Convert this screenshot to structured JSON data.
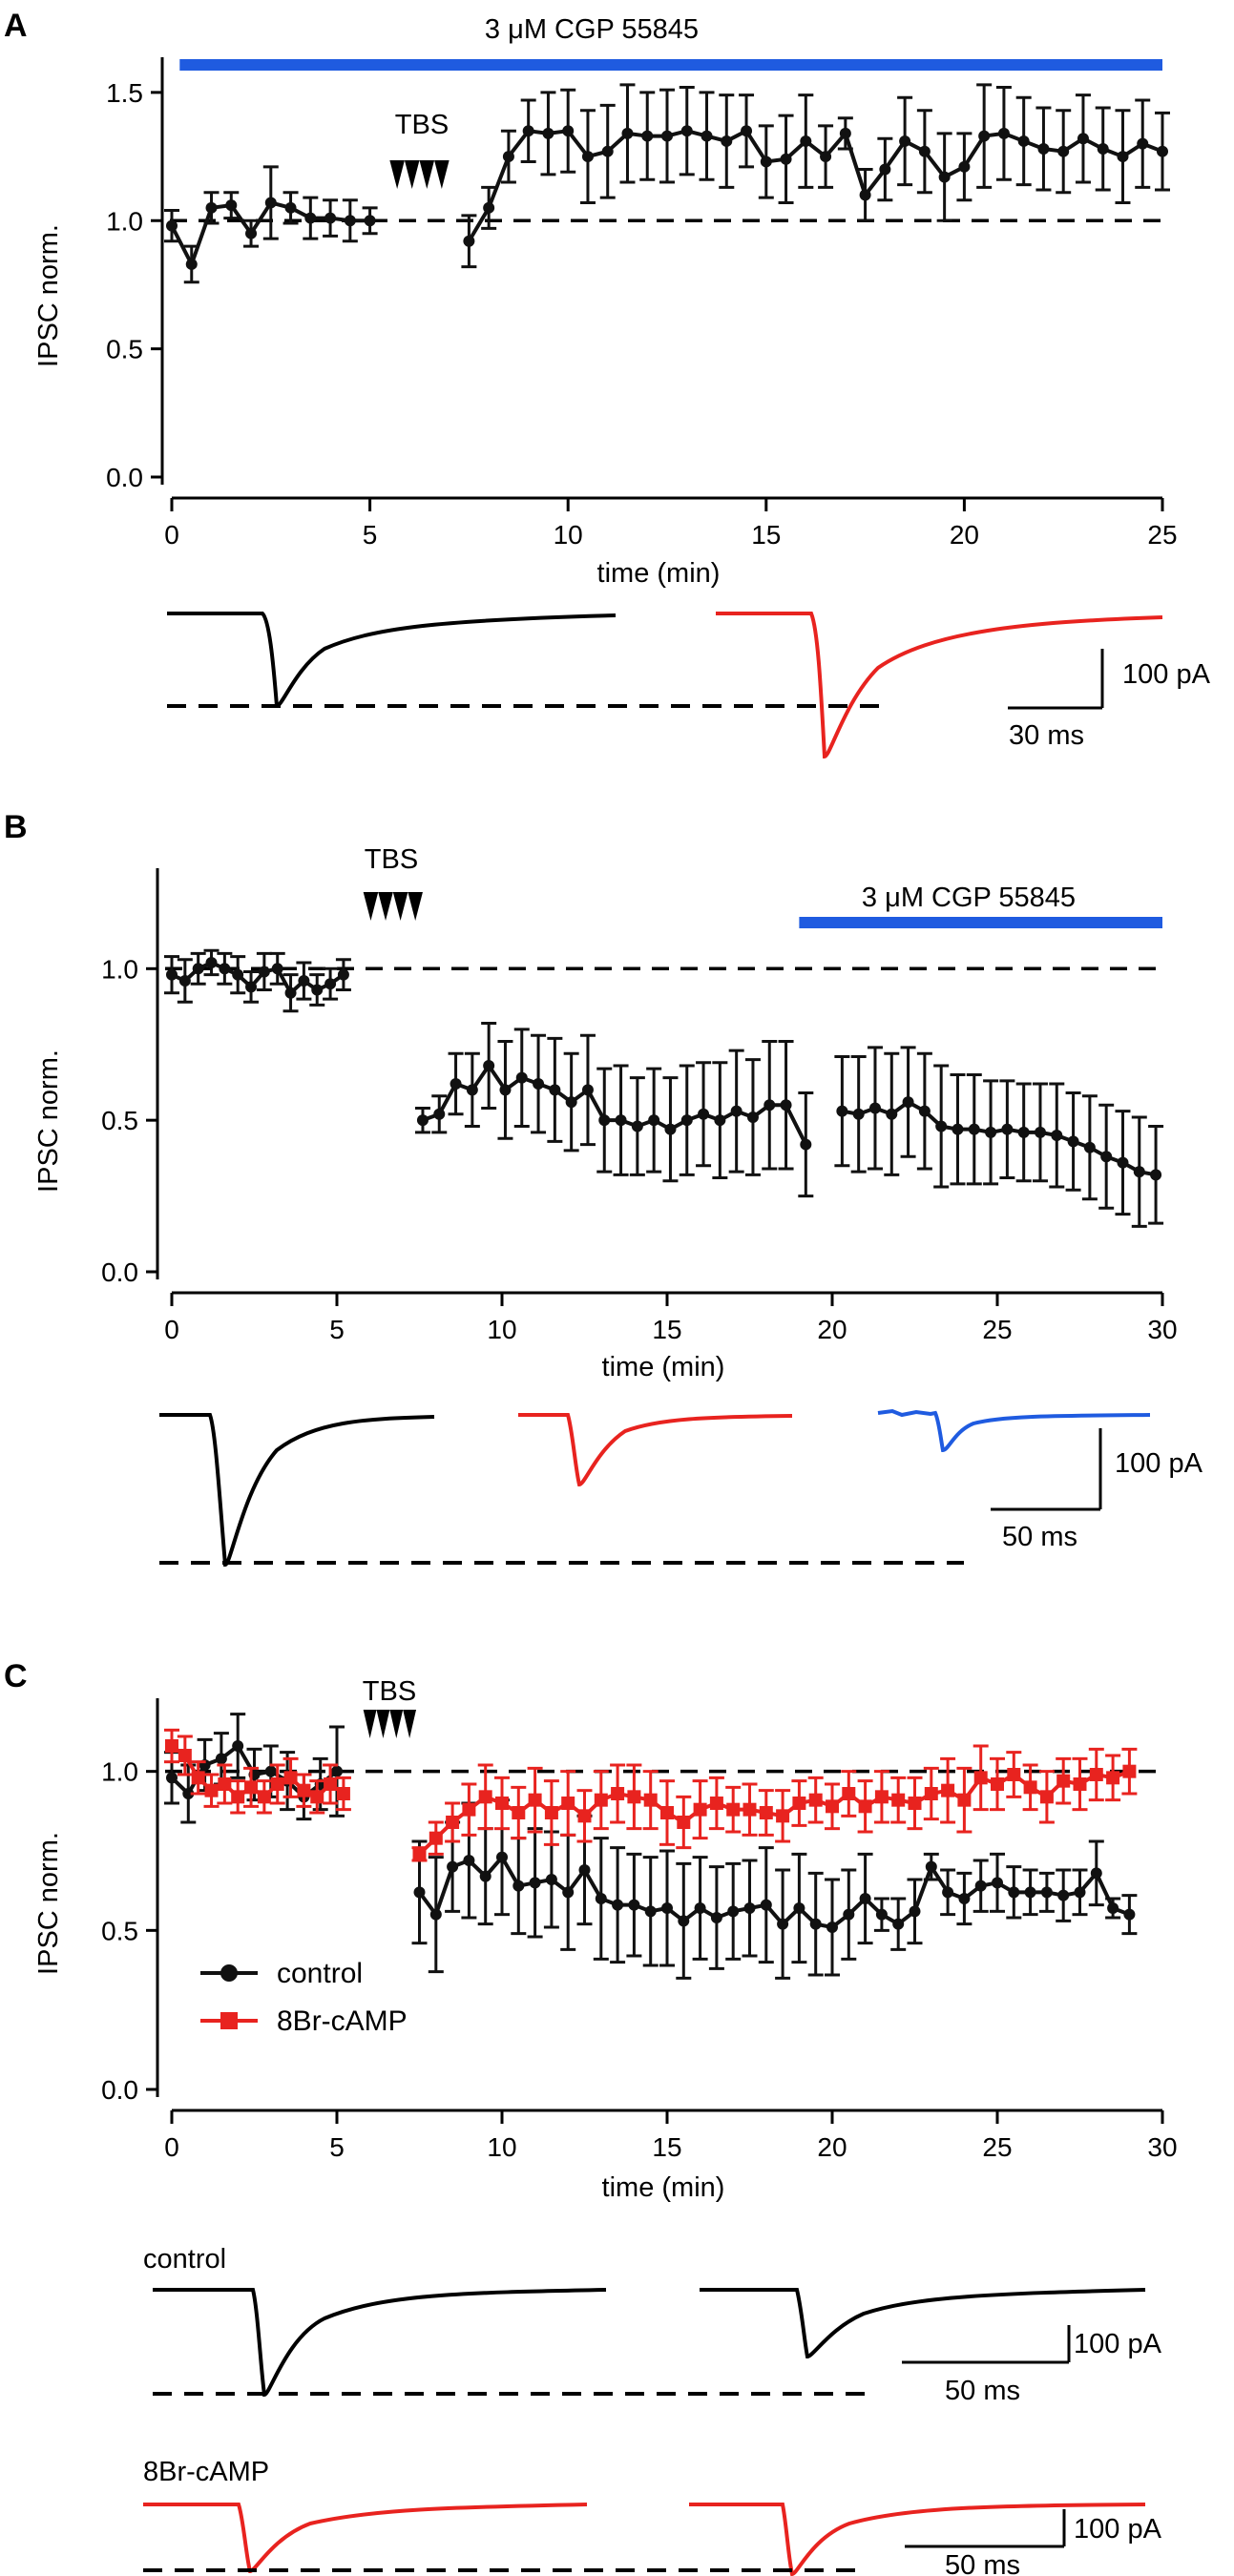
{
  "colors": {
    "axis": "#000000",
    "control": "#111111",
    "treatment_red": "#e8231f",
    "drug_bar_blue": "#1f5be0"
  },
  "chart_data": [
    {
      "panel": "A",
      "type": "line",
      "xlabel": "time (min)",
      "ylabel": "IPSC norm.",
      "xlim": [
        0,
        25
      ],
      "ylim": [
        0,
        1.6
      ],
      "xticks": [
        "0",
        "5",
        "10",
        "15",
        "20",
        "25"
      ],
      "yticks": [
        "0.0",
        "0.5",
        "1.0",
        "1.5"
      ],
      "drug_label": "3 μM CGP 55845",
      "drug_range": [
        0.2,
        25
      ],
      "stim_label": "TBS",
      "stim_range": [
        5.5,
        7
      ],
      "baseline": 1.0,
      "series": [
        {
          "name": "IPSC",
          "color": "#111111",
          "marker": "circle",
          "segments": [
            {
              "x": [
                0,
                0.5,
                1,
                1.5,
                2,
                2.5,
                3,
                3.5,
                4,
                4.5,
                5
              ],
              "y": [
                0.98,
                0.83,
                1.05,
                1.06,
                0.95,
                1.07,
                1.05,
                1.01,
                1.01,
                1.0,
                1.0
              ],
              "err": [
                0.06,
                0.07,
                0.06,
                0.05,
                0.05,
                0.14,
                0.06,
                0.08,
                0.07,
                0.08,
                0.05
              ]
            },
            {
              "x": [
                7.5,
                8,
                8.5,
                9,
                9.5,
                10,
                10.5,
                11,
                11.5,
                12,
                12.5,
                13,
                13.5,
                14,
                14.5,
                15,
                15.5,
                16,
                16.5,
                17,
                17.5,
                18,
                18.5,
                19,
                19.5,
                20,
                20.5,
                21,
                21.5,
                22,
                22.5,
                23,
                23.5,
                24,
                24.5,
                25
              ],
              "y": [
                0.92,
                1.05,
                1.25,
                1.35,
                1.34,
                1.35,
                1.25,
                1.27,
                1.34,
                1.33,
                1.33,
                1.35,
                1.33,
                1.31,
                1.35,
                1.23,
                1.24,
                1.31,
                1.25,
                1.34,
                1.1,
                1.2,
                1.31,
                1.27,
                1.17,
                1.21,
                1.33,
                1.34,
                1.31,
                1.28,
                1.27,
                1.32,
                1.28,
                1.25,
                1.3,
                1.27
              ],
              "err": [
                0.1,
                0.08,
                0.1,
                0.12,
                0.16,
                0.16,
                0.18,
                0.18,
                0.19,
                0.17,
                0.18,
                0.17,
                0.17,
                0.18,
                0.14,
                0.14,
                0.17,
                0.18,
                0.12,
                0.06,
                0.1,
                0.12,
                0.17,
                0.16,
                0.17,
                0.13,
                0.2,
                0.18,
                0.17,
                0.16,
                0.16,
                0.17,
                0.16,
                0.18,
                0.17,
                0.15
              ]
            }
          ]
        }
      ],
      "scalebar": {
        "y_label": "100 pA",
        "x_label": "30 ms"
      }
    },
    {
      "panel": "B",
      "type": "line",
      "xlabel": "time (min)",
      "ylabel": "IPSC norm.",
      "xlim": [
        0,
        30
      ],
      "ylim": [
        0,
        1.3
      ],
      "xticks": [
        "0",
        "5",
        "10",
        "15",
        "20",
        "25",
        "30"
      ],
      "yticks": [
        "0.0",
        "0.5",
        "1.0"
      ],
      "drug_label": "3 μM CGP 55845",
      "drug_range": [
        19,
        30
      ],
      "stim_label": "TBS",
      "stim_range": [
        5.8,
        7.6
      ],
      "baseline": 1.0,
      "series": [
        {
          "name": "IPSC",
          "color": "#111111",
          "marker": "circle",
          "segments": [
            {
              "x": [
                0,
                0.4,
                0.8,
                1.2,
                1.6,
                2,
                2.4,
                2.8,
                3.2,
                3.6,
                4,
                4.4,
                4.8,
                5.2
              ],
              "y": [
                0.98,
                0.96,
                1.0,
                1.02,
                1.0,
                0.98,
                0.94,
                0.99,
                1.0,
                0.92,
                0.96,
                0.93,
                0.95,
                0.98
              ],
              "err": [
                0.06,
                0.07,
                0.05,
                0.04,
                0.05,
                0.06,
                0.05,
                0.06,
                0.05,
                0.06,
                0.06,
                0.05,
                0.05,
                0.05
              ]
            },
            {
              "x": [
                7.6,
                8.1,
                8.6,
                9.1,
                9.6,
                10.1,
                10.6,
                11.1,
                11.6,
                12.1,
                12.6,
                13.1,
                13.6,
                14.1,
                14.6,
                15.1,
                15.6,
                16.1,
                16.6,
                17.1,
                17.6,
                18.1,
                18.6,
                19.2
              ],
              "y": [
                0.5,
                0.52,
                0.62,
                0.6,
                0.68,
                0.6,
                0.64,
                0.62,
                0.6,
                0.56,
                0.6,
                0.5,
                0.5,
                0.48,
                0.5,
                0.47,
                0.5,
                0.52,
                0.5,
                0.53,
                0.51,
                0.55,
                0.55,
                0.42
              ],
              "err": [
                0.04,
                0.06,
                0.1,
                0.12,
                0.14,
                0.16,
                0.16,
                0.16,
                0.17,
                0.16,
                0.18,
                0.17,
                0.18,
                0.16,
                0.17,
                0.17,
                0.18,
                0.17,
                0.19,
                0.2,
                0.19,
                0.21,
                0.21,
                0.17
              ]
            },
            {
              "x": [
                20.3,
                20.8,
                21.3,
                21.8,
                22.3,
                22.8,
                23.3,
                23.8,
                24.3,
                24.8,
                25.3,
                25.8,
                26.3,
                26.8,
                27.3,
                27.8,
                28.3,
                28.8,
                29.3,
                29.8
              ],
              "y": [
                0.53,
                0.52,
                0.54,
                0.52,
                0.56,
                0.53,
                0.48,
                0.47,
                0.47,
                0.46,
                0.47,
                0.46,
                0.46,
                0.45,
                0.43,
                0.41,
                0.38,
                0.36,
                0.33,
                0.32
              ],
              "err": [
                0.18,
                0.19,
                0.2,
                0.2,
                0.18,
                0.19,
                0.2,
                0.18,
                0.18,
                0.17,
                0.16,
                0.16,
                0.16,
                0.17,
                0.16,
                0.17,
                0.17,
                0.17,
                0.18,
                0.16
              ]
            }
          ]
        }
      ],
      "scalebar": {
        "y_label": "100 pA",
        "x_label": "50 ms"
      }
    },
    {
      "panel": "C",
      "type": "line",
      "xlabel": "time (min)",
      "ylabel": "IPSC norm.",
      "xlim": [
        0,
        30
      ],
      "ylim": [
        0,
        1.2
      ],
      "xticks": [
        "0",
        "5",
        "10",
        "15",
        "20",
        "25",
        "30"
      ],
      "yticks": [
        "0.0",
        "0.5",
        "1.0"
      ],
      "stim_label": "TBS",
      "stim_range": [
        5.8,
        7.4
      ],
      "baseline": 1.0,
      "legend_position": "lower-left",
      "series": [
        {
          "name": "control",
          "color": "#111111",
          "marker": "circle",
          "segments": [
            {
              "x": [
                0,
                0.5,
                1,
                1.5,
                2,
                2.5,
                3,
                3.5,
                4,
                4.5,
                5
              ],
              "y": [
                0.98,
                0.93,
                1.02,
                1.04,
                1.08,
                0.99,
                1.0,
                0.97,
                0.92,
                0.96,
                1.0
              ],
              "err": [
                0.08,
                0.09,
                0.08,
                0.08,
                0.1,
                0.08,
                0.08,
                0.09,
                0.07,
                0.08,
                0.14
              ]
            },
            {
              "x": [
                7.5,
                8,
                8.5,
                9,
                9.5,
                10,
                10.5,
                11,
                11.5,
                12,
                12.5,
                13,
                13.5,
                14,
                14.5,
                15,
                15.5,
                16,
                16.5,
                17,
                17.5,
                18,
                18.5,
                19,
                19.5,
                20,
                20.5,
                21,
                21.5,
                22,
                22.5,
                23,
                23.5,
                24,
                24.5,
                25,
                25.5,
                26,
                26.5,
                27,
                27.5,
                28,
                28.5,
                29
              ],
              "y": [
                0.62,
                0.55,
                0.7,
                0.72,
                0.67,
                0.73,
                0.64,
                0.65,
                0.66,
                0.62,
                0.69,
                0.6,
                0.58,
                0.58,
                0.56,
                0.57,
                0.53,
                0.57,
                0.54,
                0.56,
                0.57,
                0.58,
                0.52,
                0.57,
                0.52,
                0.51,
                0.55,
                0.6,
                0.55,
                0.52,
                0.56,
                0.7,
                0.62,
                0.6,
                0.64,
                0.65,
                0.62,
                0.62,
                0.62,
                0.61,
                0.62,
                0.68,
                0.57,
                0.55
              ],
              "err": [
                0.16,
                0.18,
                0.14,
                0.18,
                0.15,
                0.18,
                0.15,
                0.17,
                0.15,
                0.18,
                0.17,
                0.19,
                0.18,
                0.16,
                0.17,
                0.18,
                0.18,
                0.16,
                0.16,
                0.15,
                0.15,
                0.18,
                0.17,
                0.17,
                0.16,
                0.15,
                0.14,
                0.14,
                0.05,
                0.08,
                0.1,
                0.04,
                0.07,
                0.08,
                0.08,
                0.09,
                0.08,
                0.07,
                0.06,
                0.08,
                0.07,
                0.1,
                0.03,
                0.06
              ]
            }
          ]
        },
        {
          "name": "8Br-cAMP",
          "color": "#e8231f",
          "marker": "square",
          "segments": [
            {
              "x": [
                0,
                0.4,
                0.8,
                1.2,
                1.6,
                2,
                2.4,
                2.8,
                3.2,
                3.6,
                4,
                4.4,
                4.8,
                5.2
              ],
              "y": [
                1.08,
                1.05,
                0.98,
                0.94,
                0.96,
                0.92,
                0.95,
                0.92,
                0.96,
                0.98,
                0.94,
                0.92,
                0.96,
                0.93
              ],
              "err": [
                0.05,
                0.06,
                0.05,
                0.05,
                0.06,
                0.05,
                0.06,
                0.05,
                0.06,
                0.06,
                0.05,
                0.05,
                0.06,
                0.05
              ]
            },
            {
              "x": [
                7.5,
                8,
                8.5,
                9,
                9.5,
                10,
                10.5,
                11,
                11.5,
                12,
                12.5,
                13,
                13.5,
                14,
                14.5,
                15,
                15.5,
                16,
                16.5,
                17,
                17.5,
                18,
                18.5,
                19,
                19.5,
                20,
                20.5,
                21,
                21.5,
                22,
                22.5,
                23,
                23.5,
                24,
                24.5,
                25,
                25.5,
                26,
                26.5,
                27,
                27.5,
                28,
                28.5,
                29
              ],
              "y": [
                0.74,
                0.79,
                0.84,
                0.88,
                0.92,
                0.9,
                0.87,
                0.91,
                0.87,
                0.9,
                0.86,
                0.91,
                0.93,
                0.92,
                0.91,
                0.87,
                0.84,
                0.88,
                0.9,
                0.88,
                0.88,
                0.87,
                0.86,
                0.9,
                0.91,
                0.89,
                0.93,
                0.89,
                0.92,
                0.91,
                0.9,
                0.93,
                0.94,
                0.91,
                0.98,
                0.96,
                0.99,
                0.95,
                0.92,
                0.97,
                0.96,
                0.99,
                0.98,
                1.0
              ],
              "err": [
                0.02,
                0.05,
                0.06,
                0.08,
                0.1,
                0.08,
                0.08,
                0.1,
                0.1,
                0.1,
                0.08,
                0.09,
                0.09,
                0.1,
                0.09,
                0.1,
                0.08,
                0.09,
                0.08,
                0.07,
                0.08,
                0.07,
                0.08,
                0.07,
                0.07,
                0.07,
                0.07,
                0.08,
                0.08,
                0.07,
                0.08,
                0.08,
                0.1,
                0.1,
                0.1,
                0.08,
                0.07,
                0.07,
                0.08,
                0.07,
                0.08,
                0.08,
                0.07,
                0.07
              ]
            }
          ]
        }
      ],
      "trace_labels": [
        "control",
        "8Br-cAMP"
      ],
      "scalebars": [
        {
          "y_label": "100 pA",
          "x_label": "50 ms"
        },
        {
          "y_label": "100 pA",
          "x_label": "50 ms"
        }
      ]
    }
  ]
}
